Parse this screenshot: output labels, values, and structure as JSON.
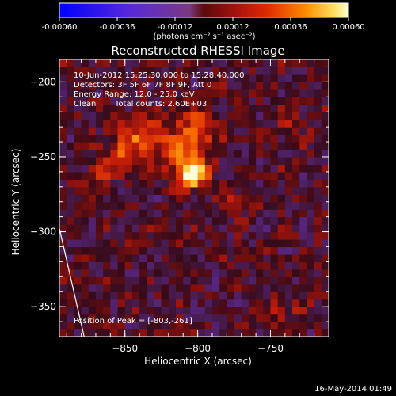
{
  "chart_data": {
    "type": "heatmap",
    "title": "Reconstructed RHESSI Image",
    "xlabel": "Heliocentric X (arcsec)",
    "ylabel": "Heliocentric Y (arcsec)",
    "xlim": [
      -895,
      -710
    ],
    "ylim": [
      -370,
      -185
    ],
    "x_ticks": [
      -850,
      -800,
      -750
    ],
    "y_ticks": [
      -200,
      -250,
      -300,
      -350
    ],
    "colorbar": {
      "ticks": [
        "-0.00060",
        "-0.00036",
        "-0.00012",
        "0.00012",
        "0.00036",
        "0.00060"
      ],
      "range": [
        -0.0006,
        0.0006
      ],
      "unit": "(photons cm⁻² s⁻¹ asec⁻²)"
    },
    "annotations": {
      "time_range": "10-Jun-2012 15:25:30.000 to 15:28:40.000",
      "detectors": "Detectors: 3F 5F 6F 7F 8F 9F, Att 0",
      "energy_range": "Energy Range: 12.0 - 25.0 keV",
      "clean": "Clean",
      "total_counts": "Total counts: 2.60E+03",
      "peak_position": "Position of Peak = [-803,-261]"
    },
    "peak": {
      "x": -803,
      "y": -261
    },
    "sources": [
      {
        "x": -803,
        "y": -261,
        "amp": 0.00058,
        "sx": 7,
        "sy": 6
      },
      {
        "x": -812,
        "y": -245,
        "amp": 0.00028,
        "sx": 14,
        "sy": 12
      },
      {
        "x": -850,
        "y": -245,
        "amp": 0.00026,
        "sx": 9,
        "sy": 9
      },
      {
        "x": -838,
        "y": -232,
        "amp": 0.0002,
        "sx": 8,
        "sy": 7
      },
      {
        "x": -800,
        "y": -230,
        "amp": 0.0002,
        "sx": 8,
        "sy": 8
      },
      {
        "x": -775,
        "y": -278,
        "amp": 0.00012,
        "sx": 8,
        "sy": 6
      },
      {
        "x": -868,
        "y": -262,
        "amp": 0.00014,
        "sx": 6,
        "sy": 8
      },
      {
        "x": -740,
        "y": -352,
        "amp": 0.00012,
        "sx": 10,
        "sy": 6
      },
      {
        "x": -735,
        "y": -225,
        "amp": 9e-05,
        "sx": 8,
        "sy": 10
      }
    ],
    "limb_line": [
      [
        -895,
        -298
      ],
      [
        -878,
        -370
      ]
    ]
  },
  "footer_date": "16-May-2014 01:49"
}
